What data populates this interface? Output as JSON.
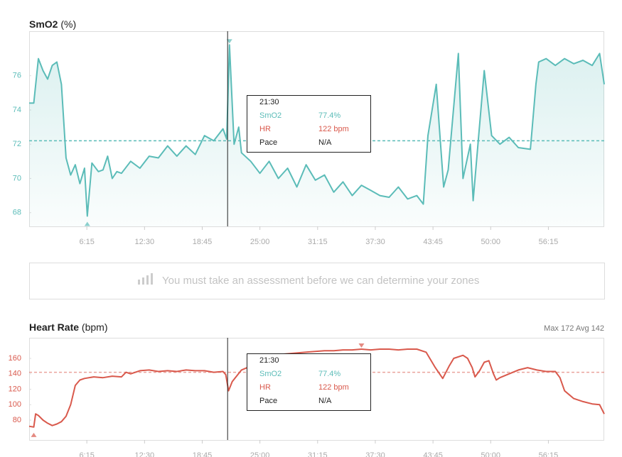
{
  "chart_data": [
    {
      "type": "line",
      "title": "SmO2",
      "unit": "(%)",
      "color": "#5bbcb8",
      "fill": true,
      "x": [
        0,
        0.5,
        1,
        1.5,
        2,
        2.5,
        3,
        3.5,
        4,
        4.5,
        5,
        5.5,
        6,
        6.3,
        6.8,
        7.5,
        8,
        8.5,
        9,
        9.5,
        10,
        11,
        12,
        13,
        14,
        15,
        16,
        17,
        18,
        19,
        20,
        21,
        21.4,
        21.7,
        22.2,
        22.7,
        23,
        24,
        25,
        26,
        27,
        28,
        29,
        30,
        31,
        32,
        33,
        34,
        35,
        36,
        37,
        38,
        39,
        40,
        41,
        42,
        42.7,
        43.2,
        44.1,
        44.9,
        45.4,
        46.5,
        47,
        47.8,
        48.1,
        49.3,
        50.1,
        51,
        52,
        53,
        54.3,
        54.9,
        55.2,
        56,
        57,
        58,
        59,
        60,
        61,
        61.8,
        62.3
      ],
      "values": [
        74.4,
        74.4,
        77,
        76.3,
        75.8,
        76.6,
        76.8,
        75.5,
        71.2,
        70.2,
        70.8,
        69.7,
        70.6,
        67.8,
        70.9,
        70.4,
        70.5,
        71.3,
        70,
        70.4,
        70.3,
        71,
        70.6,
        71.3,
        71.2,
        71.9,
        71.3,
        71.9,
        71.4,
        72.5,
        72.2,
        72.9,
        72.3,
        77.8,
        72,
        73,
        71.5,
        71,
        70.3,
        71,
        70,
        70.6,
        69.5,
        70.8,
        69.9,
        70.2,
        69.2,
        69.8,
        69,
        69.6,
        69.3,
        69,
        68.9,
        69.5,
        68.8,
        69,
        68.5,
        72.5,
        75.5,
        69.5,
        70.5,
        77.3,
        70,
        72,
        68.7,
        76.3,
        72.5,
        72,
        72.4,
        71.8,
        71.7,
        75.5,
        76.8,
        77,
        76.6,
        77,
        76.7,
        76.9,
        76.6,
        77.3,
        75.5
      ],
      "average": 72.2,
      "cursor_x": 21.5,
      "xlim": [
        0,
        62.3
      ],
      "xticks": [
        {
          "value": 6.25,
          "label": "6:15"
        },
        {
          "value": 12.5,
          "label": "12:30"
        },
        {
          "value": 18.75,
          "label": "18:45"
        },
        {
          "value": 25,
          "label": "25:00"
        },
        {
          "value": 31.25,
          "label": "31:15"
        },
        {
          "value": 37.5,
          "label": "37:30"
        },
        {
          "value": 43.75,
          "label": "43:45"
        },
        {
          "value": 50,
          "label": "50:00"
        },
        {
          "value": 56.25,
          "label": "56:15"
        }
      ],
      "ylim": [
        67.2,
        78.6
      ],
      "yticks": [
        68,
        70,
        72,
        74,
        76
      ],
      "tooltip": {
        "time": "21:30",
        "rows": [
          [
            "SmO2",
            "77.4%"
          ],
          [
            "HR",
            "122 bpm"
          ],
          [
            "Pace",
            "N/A"
          ]
        ]
      }
    },
    {
      "type": "line",
      "title": "Heart Rate",
      "unit": "(bpm)",
      "color": "#d9594c",
      "fill": false,
      "stats": [
        {
          "label": "Max",
          "value": 172
        },
        {
          "label": "Avg",
          "value": 142
        }
      ],
      "x": [
        0,
        0.5,
        0.7,
        1,
        1.5,
        2,
        2.5,
        3,
        3.5,
        4,
        4.5,
        5,
        5.5,
        6,
        7,
        8,
        9,
        10,
        10.5,
        11,
        12,
        13,
        14,
        15,
        16,
        17,
        18,
        19,
        20,
        21,
        21.3,
        21.6,
        22,
        23,
        24,
        25,
        26,
        27,
        28,
        29,
        30,
        31,
        32,
        33,
        34,
        35,
        36,
        37,
        38,
        39,
        40,
        41,
        42,
        43,
        44,
        44.8,
        45.5,
        46,
        47,
        47.5,
        48,
        48.3,
        48.8,
        49.3,
        49.8,
        50.3,
        50.6,
        51,
        52,
        53,
        54,
        55,
        56,
        57,
        57.5,
        58,
        59,
        60,
        61,
        61.8,
        62.3
      ],
      "values": [
        72,
        71,
        88,
        86,
        80,
        76,
        73,
        75,
        78,
        85,
        100,
        125,
        132,
        134,
        136,
        135,
        137,
        136,
        142,
        140,
        144,
        145,
        143,
        144,
        143,
        145,
        144,
        144,
        142,
        143,
        139,
        118,
        130,
        145,
        150,
        157,
        162,
        165,
        166,
        167,
        168,
        169,
        170,
        170,
        171,
        171,
        172,
        171,
        172,
        172,
        171,
        172,
        172,
        168,
        148,
        134,
        150,
        160,
        164,
        160,
        148,
        136,
        144,
        155,
        157,
        140,
        132,
        135,
        140,
        145,
        148,
        145,
        143,
        143,
        135,
        118,
        108,
        104,
        101,
        100,
        88
      ],
      "average": 142,
      "cursor_x": 21.5,
      "xlim": [
        0,
        62.3
      ],
      "xticks": [
        {
          "value": 6.25,
          "label": "6:15"
        },
        {
          "value": 12.5,
          "label": "12:30"
        },
        {
          "value": 18.75,
          "label": "18:45"
        },
        {
          "value": 25,
          "label": "25:00"
        },
        {
          "value": 31.25,
          "label": "31:15"
        },
        {
          "value": 37.5,
          "label": "37:30"
        },
        {
          "value": 43.75,
          "label": "43:45"
        },
        {
          "value": 50,
          "label": "50:00"
        },
        {
          "value": 56.25,
          "label": "56:15"
        }
      ],
      "ylim": [
        54.3,
        186.7
      ],
      "yticks": [
        80,
        100,
        120,
        140,
        160
      ],
      "tooltip": {
        "time": "21:30",
        "rows": [
          [
            "SmO2",
            "77.4%"
          ],
          [
            "HR",
            "122 bpm"
          ],
          [
            "Pace",
            "N/A"
          ]
        ]
      }
    }
  ],
  "banner": {
    "text": "You must take an assessment before we can determine your zones"
  }
}
